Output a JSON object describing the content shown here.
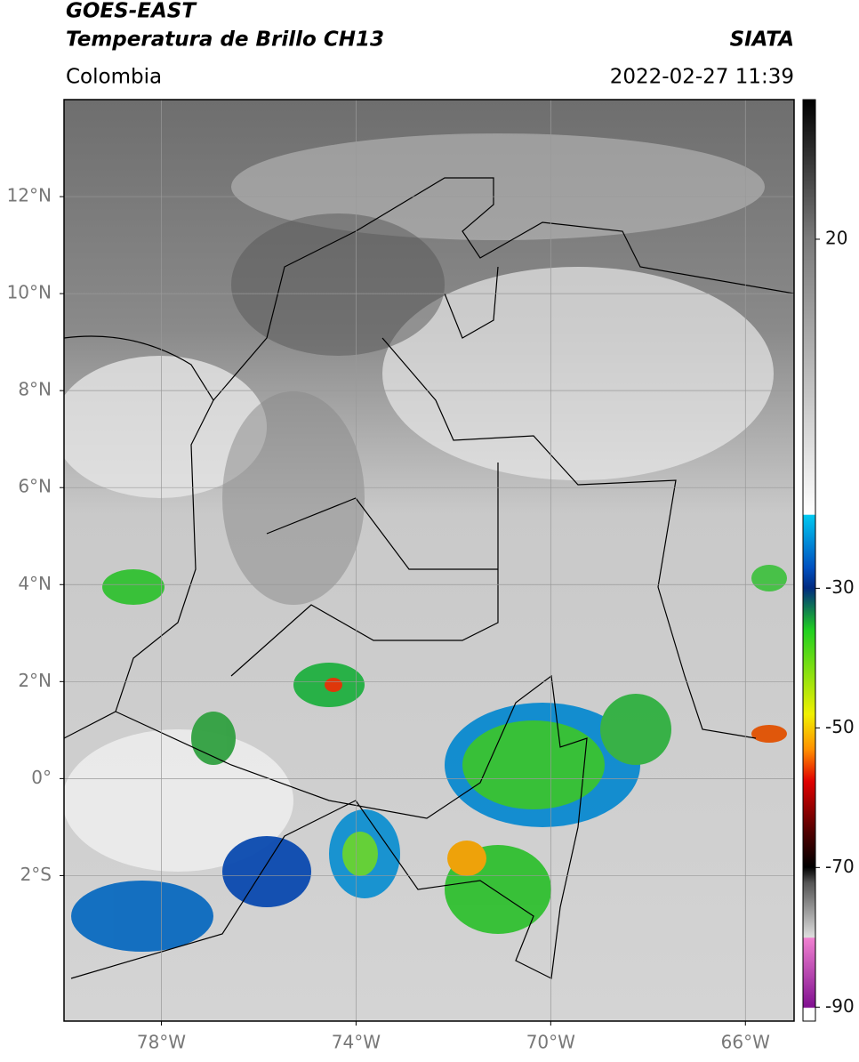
{
  "header": {
    "title_line1": "GOES-EAST",
    "title_line2": "Temperatura de Brillo CH13",
    "region": "Colombia",
    "source": "SIATA",
    "datetime": "2022-02-27 11:39"
  },
  "map": {
    "lon_range": [
      -80,
      -65
    ],
    "lat_range": [
      -5,
      14
    ],
    "lon_ticks": [
      {
        "value": -78,
        "label": "78°W"
      },
      {
        "value": -74,
        "label": "74°W"
      },
      {
        "value": -70,
        "label": "70°W"
      },
      {
        "value": -66,
        "label": "66°W"
      }
    ],
    "lat_ticks": [
      {
        "value": 12,
        "label": "12°N"
      },
      {
        "value": 10,
        "label": "10°N"
      },
      {
        "value": 8,
        "label": "8°N"
      },
      {
        "value": 6,
        "label": "6°N"
      },
      {
        "value": 4,
        "label": "4°N"
      },
      {
        "value": 2,
        "label": "2°N"
      },
      {
        "value": 0,
        "label": "0°"
      },
      {
        "value": -2,
        "label": "2°S"
      }
    ],
    "grid": true
  },
  "colorbar": {
    "range": [
      -92,
      40
    ],
    "ticks": [
      20,
      -30,
      -50,
      -70,
      -90
    ]
  }
}
